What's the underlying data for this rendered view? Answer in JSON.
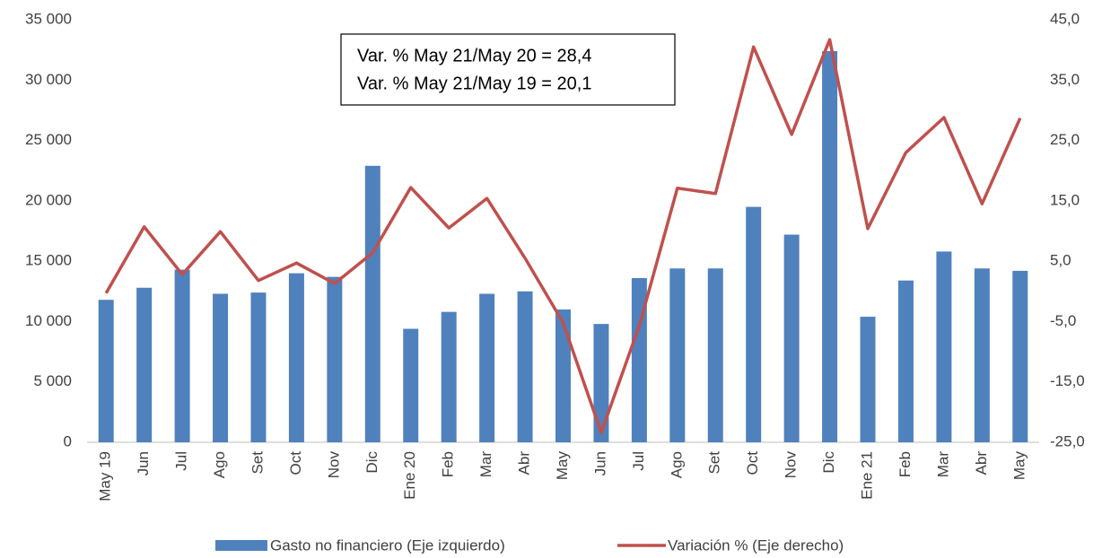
{
  "chart_data": {
    "type": "bar_line",
    "annotations": [
      "Var. % May 21/May 20 =  28,4",
      "Var. % May 21/May 19 =  20,1"
    ],
    "categories": [
      "May 19",
      "Jun",
      "Jul",
      "Ago",
      "Set",
      "Oct",
      "Nov",
      "Dic",
      "Ene 20",
      "Feb",
      "Mar",
      "Abr",
      "May",
      "Jun",
      "Jul",
      "Ago",
      "Set",
      "Oct",
      "Nov",
      "Dic",
      "Ene 21",
      "Feb",
      "Mar",
      "Abr",
      "May"
    ],
    "series": [
      {
        "name": "Gasto no financiero (Eje izquierdo)",
        "color": "#4f81bd",
        "type": "bar",
        "values": [
          11800,
          12800,
          14300,
          12300,
          12400,
          14000,
          13700,
          22900,
          9400,
          10800,
          12300,
          12500,
          11000,
          9800,
          13600,
          14400,
          14400,
          19500,
          17200,
          32400,
          10400,
          13400,
          15800,
          14400,
          14200
        ]
      },
      {
        "name": "Variación % (Eje derecho)",
        "color": "#c0504d",
        "type": "line",
        "axis": "y2",
        "values": [
          -0.3,
          10.7,
          2.8,
          9.9,
          1.8,
          4.7,
          1.3,
          6.4,
          17.2,
          10.5,
          15.4,
          5.5,
          -5.2,
          -23.4,
          -5.7,
          17.1,
          16.2,
          40.5,
          26.0,
          41.7,
          10.4,
          23.0,
          28.8,
          14.5,
          28.7
        ]
      }
    ],
    "ylim": [
      0,
      35000
    ],
    "yticks": [
      0,
      {
        "value": 5000,
        "label": "5 000"
      },
      {
        "value": 10000,
        "label": "10 000"
      },
      {
        "value": 15000,
        "label": "15 000"
      },
      {
        "value": 20000,
        "label": "20 000"
      },
      {
        "value": 25000,
        "label": "25 000"
      },
      {
        "value": 30000,
        "label": "30 000"
      },
      {
        "value": 35000,
        "label": "35 000"
      }
    ],
    "y2lim": [
      -25,
      45
    ],
    "y2ticks": [
      {
        "value": -25,
        "label": "-25,0"
      },
      {
        "value": -15,
        "label": "-15,0"
      },
      {
        "value": -5,
        "label": "-5,0"
      },
      {
        "value": 5,
        "label": "5,0"
      },
      {
        "value": 15,
        "label": "15,0"
      },
      {
        "value": 25,
        "label": "25,0"
      },
      {
        "value": 35,
        "label": "35,0"
      },
      {
        "value": 45,
        "label": "45,0"
      }
    ],
    "grid": false,
    "legend": "bottom"
  }
}
